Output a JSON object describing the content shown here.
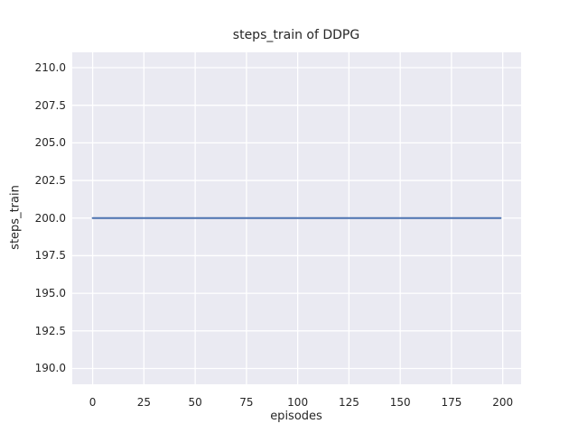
{
  "chart_data": {
    "type": "line",
    "title": "steps_train of DDPG",
    "xlabel": "episodes",
    "ylabel": "steps_train",
    "xlim": [
      -9.95,
      208.95
    ],
    "ylim": [
      188.95,
      211.05
    ],
    "xticks": [
      0,
      25,
      50,
      75,
      100,
      125,
      150,
      175,
      200
    ],
    "xtick_labels": [
      "0",
      "25",
      "50",
      "75",
      "100",
      "125",
      "150",
      "175",
      "200"
    ],
    "yticks": [
      190.0,
      192.5,
      195.0,
      197.5,
      200.0,
      202.5,
      205.0,
      207.5,
      210.0
    ],
    "ytick_labels": [
      "190.0",
      "192.5",
      "195.0",
      "197.5",
      "200.0",
      "202.5",
      "205.0",
      "207.5",
      "210.0"
    ],
    "grid": true,
    "legend_position": "none",
    "series": [
      {
        "name": "steps_train",
        "color": "#4c72b0",
        "x": [
          0,
          199
        ],
        "y": [
          200,
          200
        ],
        "description": "constant value 200 for every episode from 0 to 199"
      }
    ]
  },
  "colors": {
    "figure_background": "#ffffff",
    "axes_background": "#eaeaf2",
    "gridline": "#ffffff",
    "text": "#262626",
    "line": "#4c72b0"
  }
}
